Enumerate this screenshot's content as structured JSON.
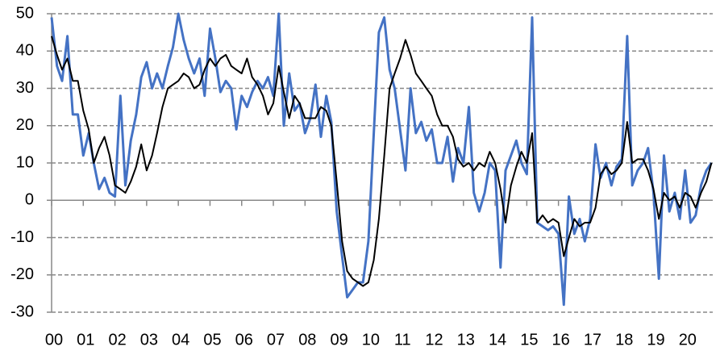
{
  "chart_data": {
    "type": "line",
    "x": [
      2000,
      2000.17,
      2000.33,
      2000.5,
      2000.67,
      2000.83,
      2001,
      2001.17,
      2001.33,
      2001.5,
      2001.67,
      2001.83,
      2002,
      2002.17,
      2002.33,
      2002.5,
      2002.67,
      2002.83,
      2003,
      2003.17,
      2003.33,
      2003.5,
      2003.67,
      2003.83,
      2004,
      2004.17,
      2004.33,
      2004.5,
      2004.67,
      2004.83,
      2005,
      2005.17,
      2005.33,
      2005.5,
      2005.67,
      2005.83,
      2006,
      2006.17,
      2006.33,
      2006.5,
      2006.67,
      2006.83,
      2007,
      2007.17,
      2007.33,
      2007.5,
      2007.67,
      2007.83,
      2008,
      2008.17,
      2008.33,
      2008.5,
      2008.67,
      2008.83,
      2009,
      2009.17,
      2009.33,
      2009.5,
      2009.67,
      2009.83,
      2010,
      2010.17,
      2010.33,
      2010.5,
      2010.67,
      2010.83,
      2011,
      2011.17,
      2011.33,
      2011.5,
      2011.67,
      2011.83,
      2012,
      2012.17,
      2012.33,
      2012.5,
      2012.67,
      2012.83,
      2013,
      2013.17,
      2013.33,
      2013.5,
      2013.67,
      2013.83,
      2014,
      2014.17,
      2014.33,
      2014.5,
      2014.67,
      2014.83,
      2015,
      2015.17,
      2015.33,
      2015.5,
      2015.67,
      2015.83,
      2016,
      2016.17,
      2016.33,
      2016.5,
      2016.67,
      2016.83,
      2017,
      2017.17,
      2017.33,
      2017.5,
      2017.67,
      2017.83,
      2018,
      2018.17,
      2018.33,
      2018.5,
      2018.67,
      2018.83,
      2019,
      2019.17,
      2019.33,
      2019.5,
      2019.67,
      2019.83,
      2020,
      2020.17,
      2020.33,
      2020.5,
      2020.67,
      2020.83
    ],
    "series": [
      {
        "color": "#4472c4",
        "width": 3,
        "values": [
          49,
          36,
          32,
          44,
          23,
          23,
          12,
          18,
          10,
          3,
          6,
          2,
          1,
          28,
          4,
          16,
          23,
          33,
          37,
          30,
          34,
          30,
          36,
          41,
          50,
          43,
          38,
          34,
          38,
          28,
          46,
          38,
          29,
          32,
          30,
          19,
          28,
          25,
          29,
          32,
          30,
          33,
          28,
          50,
          20,
          34,
          24,
          26,
          18,
          22,
          31,
          17,
          28,
          21,
          -3,
          -15,
          -26,
          -24,
          -22,
          -22,
          -11,
          18,
          45,
          49,
          35,
          30,
          19,
          8,
          30,
          18,
          21,
          16,
          19,
          10,
          10,
          17,
          5,
          14,
          10,
          25,
          2,
          -3,
          2,
          10,
          8,
          -18,
          8,
          12,
          16,
          10,
          7,
          49,
          -6,
          -7,
          -8,
          -7,
          -9,
          -28,
          1,
          -9,
          -5,
          -11,
          -5,
          15,
          6,
          10,
          4,
          9,
          11,
          44,
          4,
          8,
          10,
          14,
          2,
          -21,
          12,
          -3,
          2,
          -5,
          8,
          -6,
          -4,
          4,
          8,
          10
        ]
      },
      {
        "color": "#000000",
        "width": 2,
        "values": [
          44,
          39,
          35,
          38,
          32,
          32,
          24,
          19,
          10,
          14,
          17,
          12,
          4,
          3,
          2,
          5,
          9,
          15,
          8,
          12,
          18,
          25,
          30,
          31,
          32,
          34,
          33,
          30,
          31,
          35,
          38,
          36,
          38,
          39,
          36,
          35,
          34,
          38,
          33,
          31,
          28,
          23,
          26,
          36,
          29,
          22,
          28,
          26,
          22,
          22,
          22,
          25,
          24,
          20,
          5,
          -11,
          -19,
          -21,
          -22,
          -23,
          -22,
          -16,
          -5,
          12,
          30,
          34,
          38,
          43,
          39,
          34,
          32,
          30,
          28,
          23,
          20,
          20,
          17,
          11,
          9,
          10,
          8,
          10,
          9,
          13,
          10,
          3,
          -6,
          4,
          9,
          13,
          10,
          18,
          -6,
          -4,
          -6,
          -5,
          -6,
          -15,
          -10,
          -5,
          -7,
          -6,
          -6,
          -2,
          7,
          9,
          7,
          8,
          10,
          21,
          10,
          11,
          11,
          8,
          3,
          -5,
          2,
          0,
          1,
          -2,
          2,
          1,
          -2,
          2,
          5,
          10
        ]
      }
    ],
    "xlim": [
      2000,
      2020.87
    ],
    "xticks": [
      {
        "value": 2000,
        "label": "00"
      },
      {
        "value": 2001,
        "label": "01"
      },
      {
        "value": 2002,
        "label": "02"
      },
      {
        "value": 2003,
        "label": "03"
      },
      {
        "value": 2004,
        "label": "04"
      },
      {
        "value": 2005,
        "label": "05"
      },
      {
        "value": 2006,
        "label": "06"
      },
      {
        "value": 2007,
        "label": "07"
      },
      {
        "value": 2008,
        "label": "08"
      },
      {
        "value": 2009,
        "label": "09"
      },
      {
        "value": 2010,
        "label": "10"
      },
      {
        "value": 2011,
        "label": "11"
      },
      {
        "value": 2012,
        "label": "12"
      },
      {
        "value": 2013,
        "label": "13"
      },
      {
        "value": 2014,
        "label": "14"
      },
      {
        "value": 2015,
        "label": "15"
      },
      {
        "value": 2016,
        "label": "16"
      },
      {
        "value": 2017,
        "label": "17"
      },
      {
        "value": 2018,
        "label": "18"
      },
      {
        "value": 2019,
        "label": "19"
      },
      {
        "value": 2020,
        "label": "20"
      }
    ],
    "ylim": [
      -30,
      50
    ],
    "yticks": [
      -30,
      -20,
      -10,
      0,
      10,
      20,
      30,
      40,
      50
    ],
    "grid": true
  }
}
